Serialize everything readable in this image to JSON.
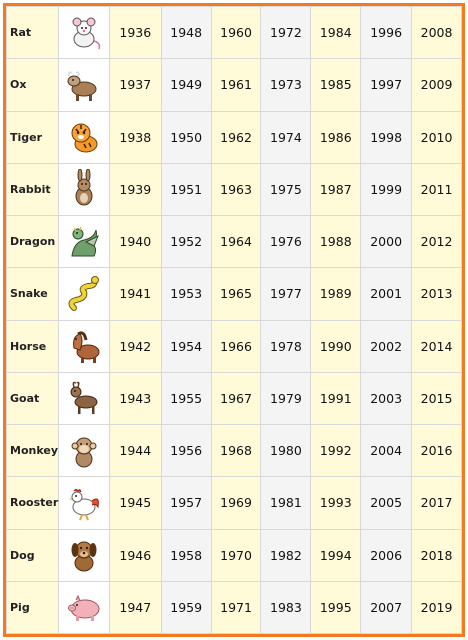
{
  "table": {
    "rows": [
      {
        "animal": "Rat",
        "icon": "rat-icon",
        "years": [
          "1936",
          "1948",
          "1960",
          "1972",
          "1984",
          "1996",
          "2008"
        ]
      },
      {
        "animal": "Ox",
        "icon": "ox-icon",
        "years": [
          "1937",
          "1949",
          "1961",
          "1973",
          "1985",
          "1997",
          "2009"
        ]
      },
      {
        "animal": "Tiger",
        "icon": "tiger-icon",
        "years": [
          "1938",
          "1950",
          "1962",
          "1974",
          "1986",
          "1998",
          "2010"
        ]
      },
      {
        "animal": "Rabbit",
        "icon": "rabbit-icon",
        "years": [
          "1939",
          "1951",
          "1963",
          "1975",
          "1987",
          "1999",
          "2011"
        ]
      },
      {
        "animal": "Dragon",
        "icon": "dragon-icon",
        "years": [
          "1940",
          "1952",
          "1964",
          "1976",
          "1988",
          "2000",
          "2012"
        ]
      },
      {
        "animal": "Snake",
        "icon": "snake-icon",
        "years": [
          "1941",
          "1953",
          "1965",
          "1977",
          "1989",
          "2001",
          "2013"
        ]
      },
      {
        "animal": "Horse",
        "icon": "horse-icon",
        "years": [
          "1942",
          "1954",
          "1966",
          "1978",
          "1990",
          "2002",
          "2014"
        ]
      },
      {
        "animal": "Goat",
        "icon": "goat-icon",
        "years": [
          "1943",
          "1955",
          "1967",
          "1979",
          "1991",
          "2003",
          "2015"
        ]
      },
      {
        "animal": "Monkey",
        "icon": "monkey-icon",
        "years": [
          "1944",
          "1956",
          "1968",
          "1980",
          "1992",
          "2004",
          "2016"
        ]
      },
      {
        "animal": "Rooster",
        "icon": "rooster-icon",
        "years": [
          "1945",
          "1957",
          "1969",
          "1981",
          "1993",
          "2005",
          "2017"
        ]
      },
      {
        "animal": "Dog",
        "icon": "dog-icon",
        "years": [
          "1946",
          "1958",
          "1970",
          "1982",
          "1994",
          "2006",
          "2018"
        ]
      },
      {
        "animal": "Pig",
        "icon": "pig-icon",
        "years": [
          "1947",
          "1959",
          "1971",
          "1983",
          "1995",
          "2007",
          "2019"
        ]
      }
    ]
  },
  "colors": {
    "border": "#f47a20",
    "cell_yellow": "#fffbd8",
    "cell_gray": "#f4f4f4"
  }
}
